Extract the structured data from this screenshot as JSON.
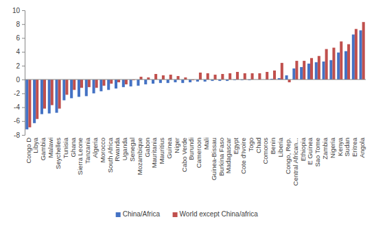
{
  "chart_data": {
    "type": "bar",
    "categories": [
      "Congo D",
      "Libya",
      "Gambia",
      "Malawi",
      "Seychelles",
      "Tunisia",
      "Ghana",
      "Sierra Leone",
      "Tanzania",
      "Algeria",
      "Morocco",
      "South Africa",
      "Rwanda",
      "Uganda",
      "Senegal",
      "Mozambique",
      "Gabon",
      "Mauritania",
      "Mauritius",
      "Guinea",
      "Niger",
      "Cabo Verde",
      "Burundi",
      "Cameroon",
      "Mali",
      "Guinea-Bissau",
      "Burkina Faso",
      "Madagascar",
      "Egypt",
      "Cote d'Ivoire",
      "Togo",
      "Chad",
      "Comoros",
      "Benin",
      "Liberia",
      "Congo, Rep.",
      "Central African...",
      "Ethiopia",
      "E Guinea",
      "Sao Tome",
      "Zambia",
      "Nigeria",
      "Kenya",
      "Sudan",
      "Eritrea",
      "Angola"
    ],
    "series": [
      {
        "name": "China/Africa",
        "color": "#4472c4",
        "values": [
          -7.2,
          -6.3,
          -5.0,
          -4.9,
          -4.8,
          -3.0,
          -2.7,
          -2.5,
          -2.4,
          -2.0,
          -1.7,
          -1.5,
          -1.3,
          -1.1,
          -1.0,
          -0.9,
          -0.7,
          -0.6,
          -0.5,
          -0.5,
          -0.4,
          -0.5,
          -0.4,
          -0.3,
          -0.3,
          -0.2,
          -0.2,
          -0.2,
          -0.1,
          -0.1,
          -0.1,
          0.0,
          0.0,
          0.1,
          0.2,
          0.6,
          1.6,
          1.8,
          2.3,
          2.5,
          2.6,
          2.8,
          3.9,
          4.1,
          6.5,
          7.1
        ]
      },
      {
        "name": "World except China/africa",
        "color": "#c0504d",
        "values": [
          -6.9,
          -5.7,
          -4.2,
          -3.7,
          -4.2,
          -2.2,
          -1.5,
          -1.2,
          -1.1,
          -1.2,
          -0.9,
          -0.6,
          -0.4,
          -0.7,
          -0.1,
          0.4,
          0.3,
          0.8,
          0.6,
          0.7,
          0.5,
          0.3,
          -0.1,
          1.0,
          0.9,
          0.7,
          0.8,
          0.9,
          1.1,
          0.9,
          0.9,
          0.9,
          1.1,
          1.3,
          2.4,
          -0.4,
          2.7,
          2.7,
          3.1,
          3.4,
          4.4,
          4.6,
          5.5,
          5.1,
          7.3,
          8.3
        ]
      }
    ],
    "ylim": [
      -8,
      10
    ],
    "yticks": [
      -8,
      -6,
      -4,
      -2,
      0,
      2,
      4,
      6,
      8,
      10
    ],
    "grid": false,
    "legend": "bottom"
  }
}
